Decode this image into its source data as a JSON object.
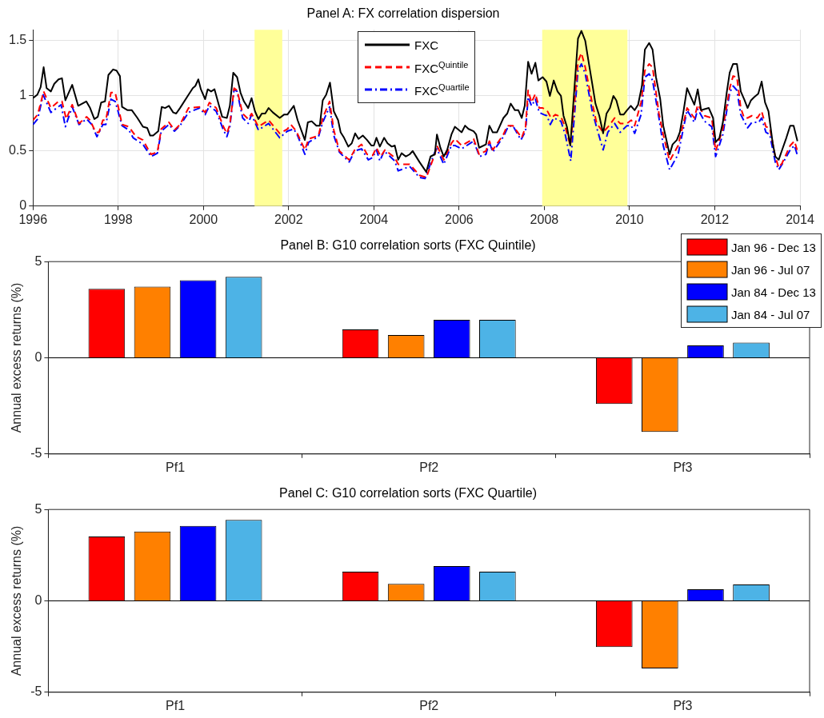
{
  "chart_data": [
    {
      "type": "line",
      "title": "Panel A: FX correlation dispersion",
      "xlim": [
        1996,
        2014
      ],
      "xticks": [
        1996,
        1998,
        2000,
        2002,
        2004,
        2006,
        2008,
        2010,
        2012,
        2014
      ],
      "ylim": [
        0,
        1.6
      ],
      "yticks": [
        0,
        0.5,
        1,
        1.5
      ],
      "grid": true,
      "legend": "top",
      "marker": "none",
      "bands": [
        {
          "axis": "x",
          "from": 2001.2,
          "to": 2001.85,
          "color": "#ffff99"
        },
        {
          "axis": "x",
          "from": 2007.95,
          "to": 2009.95,
          "color": "#ffff99"
        }
      ],
      "series": [
        {
          "name": "FXC",
          "color": "#000000",
          "line_style": "solid",
          "x": [
            1996.0,
            1996.1,
            1996.18,
            1996.25,
            1996.32,
            1996.42,
            1996.5,
            1996.6,
            1996.68,
            1996.76,
            1996.92,
            1997.06,
            1997.25,
            1997.34,
            1997.44,
            1997.52,
            1997.6,
            1997.69,
            1997.77,
            1997.88,
            1997.96,
            1998.04,
            1998.09,
            1998.22,
            1998.32,
            1998.45,
            1998.58,
            1998.68,
            1998.75,
            1998.82,
            1998.94,
            1999.02,
            1999.1,
            1999.19,
            1999.29,
            1999.36,
            1999.45,
            1999.65,
            1999.75,
            1999.81,
            1999.88,
            1999.94,
            2000.04,
            2000.1,
            2000.18,
            2000.26,
            2000.36,
            2000.44,
            2000.55,
            2000.62,
            2000.7,
            2000.79,
            2000.87,
            2000.95,
            2001.05,
            2001.13,
            2001.21,
            2001.29,
            2001.37,
            2001.45,
            2001.53,
            2001.63,
            2001.79,
            2001.89,
            2001.97,
            2002.12,
            2002.21,
            2002.38,
            2002.45,
            2002.54,
            2002.65,
            2002.73,
            2002.8,
            2002.88,
            2002.97,
            2003.06,
            2003.16,
            2003.22,
            2003.3,
            2003.4,
            2003.48,
            2003.56,
            2003.64,
            2003.74,
            2003.84,
            2003.94,
            2004.0,
            2004.06,
            2004.14,
            2004.24,
            2004.32,
            2004.42,
            2004.49,
            2004.57,
            2004.65,
            2004.75,
            2004.84,
            2004.91,
            2005.07,
            2005.23,
            2005.33,
            2005.43,
            2005.48,
            2005.56,
            2005.64,
            2005.72,
            2005.82,
            2005.9,
            2006.06,
            2006.14,
            2006.22,
            2006.34,
            2006.4,
            2006.47,
            2006.63,
            2006.71,
            2006.79,
            2006.89,
            2007.04,
            2007.13,
            2007.21,
            2007.31,
            2007.39,
            2007.47,
            2007.54,
            2007.62,
            2007.7,
            2007.79,
            2007.86,
            2007.96,
            2008.05,
            2008.13,
            2008.22,
            2008.31,
            2008.39,
            2008.45,
            2008.53,
            2008.61,
            2008.71,
            2008.79,
            2008.87,
            2008.96,
            2009.03,
            2009.12,
            2009.2,
            2009.29,
            2009.38,
            2009.46,
            2009.54,
            2009.62,
            2009.69,
            2009.78,
            2009.86,
            2009.94,
            2010.03,
            2010.12,
            2010.2,
            2010.29,
            2010.36,
            2010.46,
            2010.54,
            2010.62,
            2010.72,
            2010.79,
            2010.94,
            2011.01,
            2011.11,
            2011.18,
            2011.27,
            2011.35,
            2011.44,
            2011.52,
            2011.6,
            2011.68,
            2011.76,
            2011.86,
            2011.96,
            2012.02,
            2012.11,
            2012.19,
            2012.28,
            2012.35,
            2012.43,
            2012.52,
            2012.61,
            2012.69,
            2012.77,
            2012.85,
            2012.93,
            2013.02,
            2013.1,
            2013.18,
            2013.26,
            2013.36,
            2013.42,
            2013.5,
            2013.58,
            2013.68,
            2013.77,
            2013.85,
            2013.94
          ],
          "values": [
            0.98,
            1.01,
            1.08,
            1.26,
            1.07,
            1.04,
            1.11,
            1.15,
            1.16,
            0.96,
            1.1,
            0.91,
            0.95,
            0.89,
            0.79,
            0.81,
            0.94,
            0.95,
            1.19,
            1.24,
            1.23,
            1.18,
            0.9,
            0.87,
            0.87,
            0.8,
            0.72,
            0.71,
            0.64,
            0.64,
            0.68,
            0.9,
            0.89,
            0.91,
            0.85,
            0.84,
            0.89,
            1.01,
            1.07,
            1.09,
            1.15,
            1.06,
            0.97,
            1.06,
            1.04,
            1.06,
            0.92,
            0.81,
            0.8,
            0.91,
            1.21,
            1.17,
            1.03,
            0.95,
            0.89,
            0.98,
            0.86,
            0.79,
            0.84,
            0.84,
            0.89,
            0.85,
            0.8,
            0.83,
            0.83,
            0.91,
            0.78,
            0.6,
            0.76,
            0.77,
            0.73,
            0.73,
            0.96,
            1.01,
            1.12,
            0.86,
            0.78,
            0.67,
            0.62,
            0.54,
            0.57,
            0.66,
            0.61,
            0.64,
            0.6,
            0.55,
            0.55,
            0.62,
            0.54,
            0.62,
            0.57,
            0.54,
            0.55,
            0.42,
            0.48,
            0.45,
            0.47,
            0.5,
            0.4,
            0.31,
            0.45,
            0.47,
            0.65,
            0.53,
            0.45,
            0.51,
            0.65,
            0.72,
            0.67,
            0.73,
            0.7,
            0.68,
            0.65,
            0.53,
            0.56,
            0.73,
            0.67,
            0.67,
            0.8,
            0.84,
            0.93,
            0.87,
            0.87,
            0.8,
            0.91,
            1.31,
            1.2,
            1.3,
            1.14,
            1.17,
            1.13,
            1.0,
            1.14,
            1.04,
            1.0,
            0.82,
            0.72,
            0.55,
            1.09,
            1.52,
            1.59,
            1.5,
            1.33,
            1.12,
            0.93,
            0.82,
            0.66,
            0.84,
            0.89,
            1.0,
            0.96,
            0.83,
            0.83,
            0.87,
            0.91,
            0.87,
            0.92,
            1.09,
            1.42,
            1.48,
            1.42,
            1.17,
            0.97,
            0.73,
            0.47,
            0.56,
            0.6,
            0.67,
            0.87,
            1.07,
            0.99,
            0.92,
            1.06,
            0.87,
            0.88,
            0.89,
            0.8,
            0.58,
            0.62,
            0.76,
            1.03,
            1.21,
            1.29,
            1.29,
            1.04,
            0.97,
            0.89,
            0.96,
            0.99,
            1.02,
            1.13,
            0.94,
            0.86,
            0.57,
            0.45,
            0.42,
            0.51,
            0.62,
            0.73,
            0.73,
            0.59
          ]
        },
        {
          "name": "FXC$^{Quintile}$",
          "color": "#ff0000",
          "line_style": "dashed",
          "x": [
            1996.0,
            1996.11,
            1996.25,
            1996.42,
            1996.6,
            1996.68,
            1996.78,
            1996.92,
            1997.08,
            1997.26,
            1997.34,
            1997.47,
            1997.55,
            1997.64,
            1997.71,
            1997.83,
            1997.93,
            1998.09,
            1998.25,
            1998.42,
            1998.58,
            1998.77,
            1998.92,
            1999.01,
            1999.19,
            1999.32,
            1999.45,
            1999.65,
            1999.91,
            2000.04,
            2000.14,
            2000.3,
            2000.47,
            2000.55,
            2000.62,
            2000.72,
            2000.79,
            2000.92,
            2001.05,
            2001.13,
            2001.29,
            2001.53,
            2001.79,
            2001.97,
            2002.05,
            2002.18,
            2002.38,
            2002.47,
            2002.7,
            2002.8,
            2002.96,
            2003.06,
            2003.19,
            2003.42,
            2003.55,
            2003.71,
            2003.84,
            2003.97,
            2004.06,
            2004.16,
            2004.26,
            2004.49,
            2004.57,
            2004.84,
            2005.07,
            2005.23,
            2005.43,
            2005.48,
            2005.64,
            2005.82,
            2005.9,
            2006.06,
            2006.34,
            2006.47,
            2006.63,
            2006.71,
            2006.79,
            2007.04,
            2007.13,
            2007.26,
            2007.47,
            2007.56,
            2007.62,
            2007.7,
            2007.79,
            2007.88,
            2007.96,
            2008.06,
            2008.16,
            2008.26,
            2008.39,
            2008.49,
            2008.61,
            2008.71,
            2008.79,
            2008.87,
            2008.96,
            2009.12,
            2009.23,
            2009.38,
            2009.52,
            2009.65,
            2009.78,
            2009.94,
            2010.04,
            2010.12,
            2010.27,
            2010.36,
            2010.46,
            2010.54,
            2010.69,
            2010.79,
            2010.94,
            2011.14,
            2011.35,
            2011.52,
            2011.6,
            2011.76,
            2011.93,
            2012.02,
            2012.19,
            2012.35,
            2012.43,
            2012.52,
            2012.61,
            2012.69,
            2012.77,
            2012.87,
            2013.0,
            2013.1,
            2013.2,
            2013.29,
            2013.42,
            2013.5,
            2013.58,
            2013.77,
            2013.87,
            2013.94
          ],
          "values": [
            0.78,
            0.83,
            1.04,
            0.89,
            0.95,
            0.95,
            0.79,
            0.92,
            0.75,
            0.81,
            0.78,
            0.67,
            0.67,
            0.78,
            0.78,
            1.03,
            1.03,
            0.74,
            0.72,
            0.63,
            0.6,
            0.47,
            0.49,
            0.7,
            0.76,
            0.69,
            0.74,
            0.89,
            0.9,
            0.85,
            0.94,
            0.89,
            0.72,
            0.66,
            0.74,
            1.07,
            1.05,
            0.84,
            0.79,
            0.84,
            0.72,
            0.78,
            0.66,
            0.7,
            0.74,
            0.68,
            0.51,
            0.61,
            0.64,
            0.8,
            0.95,
            0.69,
            0.5,
            0.42,
            0.51,
            0.56,
            0.47,
            0.46,
            0.53,
            0.45,
            0.51,
            0.44,
            0.38,
            0.38,
            0.28,
            0.26,
            0.47,
            0.55,
            0.42,
            0.57,
            0.61,
            0.55,
            0.61,
            0.47,
            0.5,
            0.59,
            0.51,
            0.65,
            0.73,
            0.73,
            0.62,
            0.72,
            1.05,
            0.94,
            1.02,
            0.89,
            0.89,
            0.87,
            0.8,
            0.83,
            0.81,
            0.72,
            0.55,
            0.94,
            1.31,
            1.39,
            1.26,
            0.94,
            0.75,
            0.67,
            0.73,
            0.8,
            0.75,
            0.75,
            0.78,
            0.73,
            0.94,
            1.23,
            1.29,
            1.26,
            0.84,
            0.65,
            0.41,
            0.55,
            0.89,
            0.8,
            0.92,
            0.82,
            0.8,
            0.5,
            0.7,
            1.07,
            1.18,
            1.17,
            0.89,
            0.8,
            0.8,
            0.82,
            0.8,
            0.86,
            0.72,
            0.71,
            0.45,
            0.35,
            0.39,
            0.55,
            0.59,
            0.5
          ]
        },
        {
          "name": "FXC$^{Quartile}$",
          "color": "#0000ff",
          "line_style": "dashdot",
          "x": [
            1996.0,
            1996.11,
            1996.24,
            1996.42,
            1996.66,
            1996.76,
            1996.92,
            1997.08,
            1997.26,
            1997.38,
            1997.5,
            1997.64,
            1997.71,
            1997.83,
            1997.93,
            1998.09,
            1998.25,
            1998.35,
            1998.58,
            1998.77,
            1998.92,
            1999.01,
            1999.19,
            1999.32,
            1999.45,
            1999.65,
            1999.91,
            2000.04,
            2000.14,
            2000.3,
            2000.47,
            2000.55,
            2000.62,
            2000.72,
            2000.79,
            2000.92,
            2001.05,
            2001.13,
            2001.29,
            2001.53,
            2001.79,
            2001.97,
            2002.12,
            2002.21,
            2002.38,
            2002.47,
            2002.7,
            2002.8,
            2002.96,
            2003.06,
            2003.19,
            2003.42,
            2003.55,
            2003.71,
            2003.87,
            2003.97,
            2004.06,
            2004.14,
            2004.24,
            2004.49,
            2004.57,
            2004.84,
            2005.07,
            2005.2,
            2005.43,
            2005.48,
            2005.64,
            2005.82,
            2005.9,
            2006.06,
            2006.34,
            2006.48,
            2006.63,
            2006.71,
            2006.79,
            2007.04,
            2007.15,
            2007.26,
            2007.45,
            2007.56,
            2007.62,
            2007.7,
            2007.79,
            2007.88,
            2007.99,
            2008.06,
            2008.14,
            2008.22,
            2008.39,
            2008.49,
            2008.62,
            2008.71,
            2008.79,
            2008.87,
            2008.96,
            2009.12,
            2009.23,
            2009.38,
            2009.49,
            2009.65,
            2009.78,
            2009.94,
            2010.04,
            2010.12,
            2010.27,
            2010.36,
            2010.46,
            2010.54,
            2010.69,
            2010.79,
            2010.94,
            2011.14,
            2011.35,
            2011.52,
            2011.6,
            2011.76,
            2011.93,
            2012.02,
            2012.19,
            2012.35,
            2012.43,
            2012.52,
            2012.61,
            2012.77,
            2012.87,
            2013.03,
            2013.1,
            2013.2,
            2013.29,
            2013.42,
            2013.5,
            2013.58,
            2013.77,
            2013.87,
            2013.94
          ],
          "values": [
            0.74,
            0.79,
            1.01,
            0.85,
            0.92,
            0.72,
            0.9,
            0.74,
            0.79,
            0.74,
            0.63,
            0.74,
            0.74,
            0.97,
            0.95,
            0.73,
            0.69,
            0.62,
            0.56,
            0.45,
            0.48,
            0.68,
            0.74,
            0.68,
            0.73,
            0.85,
            0.89,
            0.83,
            0.91,
            0.86,
            0.69,
            0.63,
            0.72,
            1.06,
            1.04,
            0.8,
            0.75,
            0.83,
            0.69,
            0.75,
            0.62,
            0.68,
            0.7,
            0.64,
            0.47,
            0.58,
            0.63,
            0.76,
            0.9,
            0.64,
            0.49,
            0.4,
            0.5,
            0.52,
            0.42,
            0.44,
            0.51,
            0.41,
            0.5,
            0.41,
            0.32,
            0.36,
            0.26,
            0.25,
            0.49,
            0.52,
            0.38,
            0.55,
            0.55,
            0.52,
            0.59,
            0.45,
            0.47,
            0.58,
            0.49,
            0.63,
            0.72,
            0.73,
            0.6,
            0.68,
            0.99,
            0.91,
            0.97,
            0.85,
            0.83,
            0.82,
            0.74,
            0.8,
            0.77,
            0.65,
            0.41,
            0.84,
            1.23,
            1.29,
            1.2,
            0.87,
            0.71,
            0.51,
            0.67,
            0.75,
            0.67,
            0.73,
            0.73,
            0.66,
            0.83,
            1.17,
            1.2,
            1.14,
            0.8,
            0.55,
            0.33,
            0.47,
            0.87,
            0.76,
            0.88,
            0.77,
            0.72,
            0.45,
            0.65,
            1.03,
            1.09,
            1.05,
            0.83,
            0.71,
            0.76,
            0.76,
            0.8,
            0.67,
            0.65,
            0.4,
            0.33,
            0.38,
            0.51,
            0.55,
            0.46
          ]
        }
      ]
    },
    {
      "type": "bar",
      "title": "Panel B: G10 correlation sorts (FXC Quintile)",
      "ylabel": "Annual excess returns (%)",
      "categories": [
        "Pf1",
        "Pf2",
        "Pf3"
      ],
      "ylim": [
        -5,
        5
      ],
      "yticks": [
        -5,
        0,
        5
      ],
      "legend": "top right",
      "ref_lines": [
        {
          "axis": "y",
          "value": 0,
          "color": "#000000"
        }
      ],
      "series": [
        {
          "name": "Jan 96 - Dec 13",
          "color": "#ff0000",
          "values": [
            3.58,
            1.48,
            -2.4
          ]
        },
        {
          "name": "Jan 96 - Jul 07",
          "color": "#ff8000",
          "values": [
            3.7,
            1.18,
            -3.85
          ]
        },
        {
          "name": "Jan 84 - Dec 13",
          "color": "#0000ff",
          "values": [
            4.03,
            1.97,
            0.64
          ]
        },
        {
          "name": "Jan 84 - Jul 07",
          "color": "#4db3e6",
          "values": [
            4.21,
            1.97,
            0.79
          ]
        }
      ]
    },
    {
      "type": "bar",
      "title": "Panel C: G10 correlation sorts (FXC Quartile)",
      "ylabel": "Annual excess returns (%)",
      "categories": [
        "Pf1",
        "Pf2",
        "Pf3"
      ],
      "ylim": [
        -5,
        5
      ],
      "yticks": [
        -5,
        0,
        5
      ],
      "ref_lines": [
        {
          "axis": "y",
          "value": 0,
          "color": "#000000"
        }
      ],
      "series": [
        {
          "color": "#ff0000",
          "values": [
            3.52,
            1.6,
            -2.53
          ]
        },
        {
          "color": "#ff8000",
          "values": [
            3.8,
            0.93,
            -3.7
          ]
        },
        {
          "color": "#0000ff",
          "values": [
            4.1,
            1.9,
            0.63
          ]
        },
        {
          "color": "#4db3e6",
          "values": [
            4.43,
            1.6,
            0.9
          ]
        }
      ]
    }
  ]
}
